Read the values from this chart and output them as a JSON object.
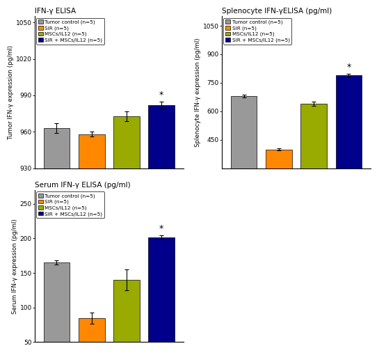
{
  "plots": [
    {
      "title": "IFN-γ ELISA",
      "ylabel": "Tumor IFN-γ expression (pg/ml)",
      "values": [
        963,
        958,
        973,
        982
      ],
      "errors": [
        4,
        2,
        4,
        3
      ],
      "ylim": [
        930,
        1055
      ],
      "yticks": [
        930,
        960,
        990,
        1020,
        1050
      ],
      "star_idx": 3,
      "grid_col": 0,
      "grid_row": 1
    },
    {
      "title": "Splenocyte IFN-γELISA (pg/ml)",
      "ylabel": "Splenocyte IFN-γ expression (pg/ml)",
      "values": [
        680,
        400,
        640,
        790
      ],
      "errors": [
        8,
        5,
        12,
        8
      ],
      "ylim": [
        300,
        1100
      ],
      "yticks": [
        450,
        600,
        750,
        900,
        1050
      ],
      "star_idx": 3,
      "grid_col": 1,
      "grid_row": 1
    },
    {
      "title": "Serum IFN-γ ELISA (pg/ml)",
      "ylabel": "Serum IFN-γ expression (pg/ml)",
      "values": [
        165,
        85,
        140,
        202
      ],
      "errors": [
        3,
        8,
        15,
        3
      ],
      "ylim": [
        50,
        270
      ],
      "yticks": [
        50,
        100,
        150,
        200,
        250
      ],
      "star_idx": 3,
      "grid_col": 0,
      "grid_row": 0
    }
  ],
  "bar_colors": [
    "#999999",
    "#FF8800",
    "#99AA00",
    "#00008B"
  ],
  "legend_labels": [
    "Tumor control (n=5)",
    "SIR (n=5)",
    "MSCs/IL12 (n=5)",
    "SIR + MSCs/IL12 (n=5)"
  ],
  "bar_width": 0.6,
  "capsize": 2,
  "axes_rects": {
    "0_1": [
      0.09,
      0.535,
      0.385,
      0.42
    ],
    "1_1": [
      0.575,
      0.535,
      0.385,
      0.42
    ],
    "0_0": [
      0.09,
      0.055,
      0.385,
      0.42
    ]
  }
}
